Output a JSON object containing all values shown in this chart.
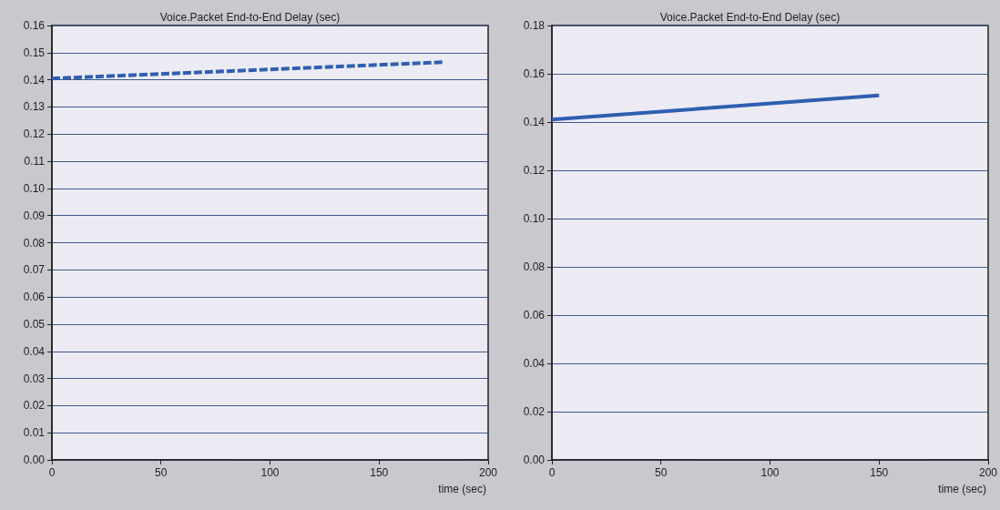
{
  "chart_data": [
    {
      "type": "line",
      "title": "Voice.Packet End-to-End Delay (sec)",
      "xlabel": "time (sec)",
      "x": [
        0,
        60,
        120,
        180
      ],
      "series": [
        {
          "color": "#2f5fb0",
          "values": [
            0.1405,
            0.1425,
            0.1445,
            0.1465
          ]
        }
      ],
      "xlim": [
        0,
        200
      ],
      "xticks": [
        0,
        50,
        100,
        150,
        200
      ],
      "ylim": [
        0,
        0.16
      ],
      "yticks": [
        {
          "value": 0,
          "label": "0.00"
        },
        {
          "value": 0.01,
          "label": "0.01"
        },
        {
          "value": 0.02,
          "label": "0.02"
        },
        {
          "value": 0.03,
          "label": "0.03"
        },
        {
          "value": 0.04,
          "label": "0.04"
        },
        {
          "value": 0.05,
          "label": "0.05"
        },
        {
          "value": 0.06,
          "label": "0.06"
        },
        {
          "value": 0.07,
          "label": "0.07"
        },
        {
          "value": 0.08,
          "label": "0.08"
        },
        {
          "value": 0.09,
          "label": "0.09"
        },
        {
          "value": 0.1,
          "label": "0.10"
        },
        {
          "value": 0.11,
          "label": "0.11"
        },
        {
          "value": 0.12,
          "label": "0.12"
        },
        {
          "value": 0.13,
          "label": "0.13"
        },
        {
          "value": 0.14,
          "label": "0.14"
        },
        {
          "value": 0.15,
          "label": "0.15"
        },
        {
          "value": 0.16,
          "label": "0.16"
        }
      ],
      "grid": "y",
      "line_style": "dashed"
    },
    {
      "type": "line",
      "title": "Voice.Packet End-to-End Delay (sec)",
      "xlabel": "time (sec)",
      "x": [
        0,
        150
      ],
      "series": [
        {
          "color": "#2f5fb0",
          "values": [
            0.141,
            0.151
          ]
        }
      ],
      "xlim": [
        0,
        200
      ],
      "xticks": [
        0,
        50,
        100,
        150,
        200
      ],
      "ylim": [
        0,
        0.18
      ],
      "yticks": [
        {
          "value": 0,
          "label": "0.00"
        },
        {
          "value": 0.02,
          "label": "0.02"
        },
        {
          "value": 0.04,
          "label": "0.04"
        },
        {
          "value": 0.06,
          "label": "0.06"
        },
        {
          "value": 0.08,
          "label": "0.08"
        },
        {
          "value": 0.1,
          "label": "0.10"
        },
        {
          "value": 0.12,
          "label": "0.12"
        },
        {
          "value": 0.14,
          "label": "0.14"
        },
        {
          "value": 0.16,
          "label": "0.16"
        },
        {
          "value": 0.18,
          "label": "0.18"
        }
      ],
      "grid": "y",
      "line_style": "solid"
    }
  ]
}
